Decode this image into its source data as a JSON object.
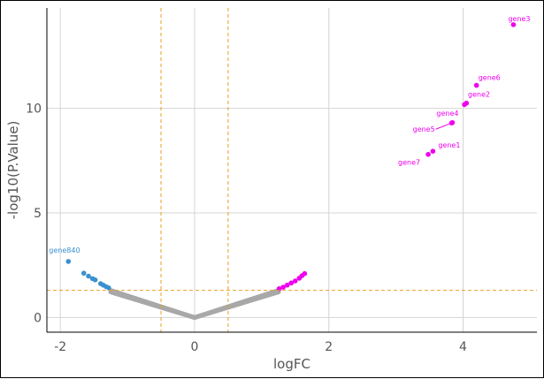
{
  "chart_data": {
    "type": "scatter",
    "title": "",
    "xlabel": "logFC",
    "ylabel": "-log10(P.Value)",
    "xlim": [
      -2.2,
      5.1
    ],
    "ylim": [
      -0.7,
      14.8
    ],
    "xticks": [
      -2,
      0,
      2,
      4
    ],
    "yticks": [
      0,
      5,
      10
    ],
    "xtick_labels": [
      "-2",
      "0",
      "2",
      "4"
    ],
    "ytick_labels": [
      "0",
      "5",
      "10"
    ],
    "grid": true,
    "legend": "none",
    "thresholds": {
      "vertical": [
        -0.5,
        0.5
      ],
      "horizontal": [
        1.3
      ]
    },
    "colors": {
      "up": "#ee00ee",
      "down": "#3a8fd0",
      "ns": "#a8a8a8",
      "threshold": "#e8a020",
      "grid": "#d4d4d4",
      "axis": "#000000",
      "tick_text": "#555555"
    },
    "ns_curve": {
      "x_min": -1.25,
      "x_max": 1.25,
      "shape": "V-shaped band: y ≈ 1.04·|x|"
    },
    "series": [
      {
        "group": "down",
        "points": [
          {
            "x": -1.88,
            "y": 2.68,
            "label": "gene840"
          },
          {
            "x": -1.65,
            "y": 2.12
          },
          {
            "x": -1.58,
            "y": 1.98
          },
          {
            "x": -1.52,
            "y": 1.86
          },
          {
            "x": -1.48,
            "y": 1.8
          },
          {
            "x": -1.4,
            "y": 1.62
          },
          {
            "x": -1.36,
            "y": 1.55
          },
          {
            "x": -1.32,
            "y": 1.48
          },
          {
            "x": -1.28,
            "y": 1.42
          }
        ]
      },
      {
        "group": "up",
        "points": [
          {
            "x": 1.26,
            "y": 1.38
          },
          {
            "x": 1.32,
            "y": 1.45
          },
          {
            "x": 1.38,
            "y": 1.55
          },
          {
            "x": 1.44,
            "y": 1.65
          },
          {
            "x": 1.5,
            "y": 1.75
          },
          {
            "x": 1.56,
            "y": 1.88
          },
          {
            "x": 1.6,
            "y": 2.0
          },
          {
            "x": 1.64,
            "y": 2.1
          },
          {
            "x": 3.55,
            "y": 7.95,
            "label": "gene1"
          },
          {
            "x": 3.48,
            "y": 7.8,
            "label": "gene7"
          },
          {
            "x": 4.02,
            "y": 10.18,
            "label": "gene2"
          },
          {
            "x": 4.05,
            "y": 10.25
          },
          {
            "x": 4.75,
            "y": 14.0,
            "label": "gene3"
          },
          {
            "x": 3.84,
            "y": 9.32,
            "label": "gene4"
          },
          {
            "x": 3.83,
            "y": 9.3,
            "label": "gene5"
          },
          {
            "x": 4.2,
            "y": 11.1,
            "label": "gene6"
          }
        ]
      }
    ]
  }
}
